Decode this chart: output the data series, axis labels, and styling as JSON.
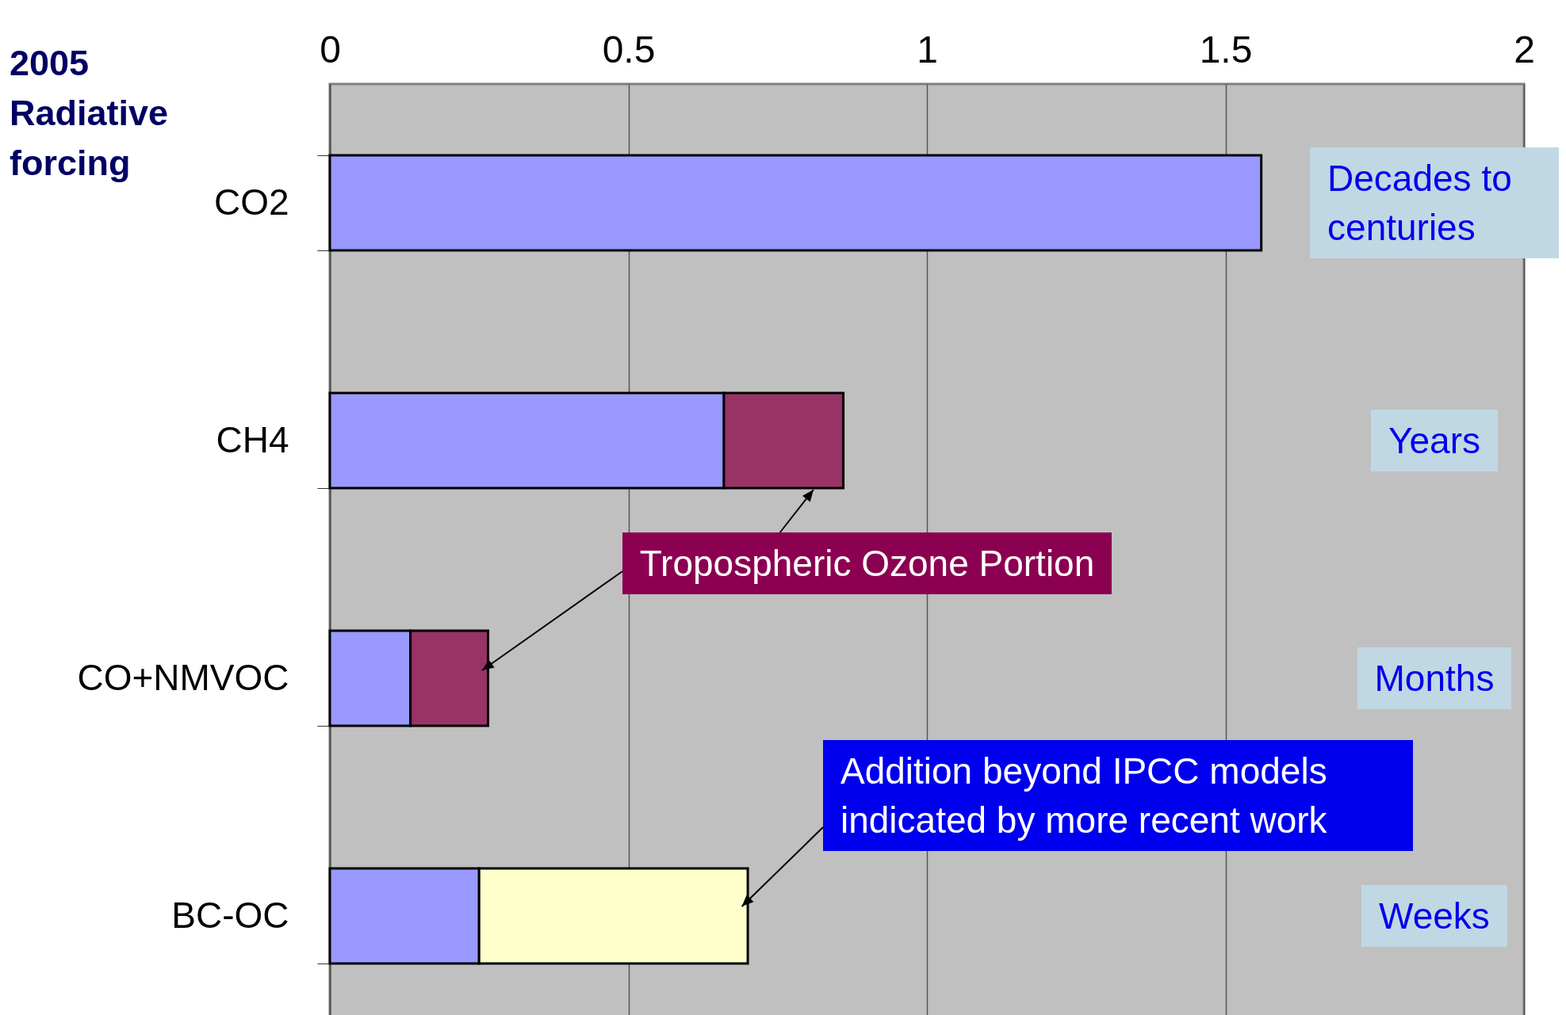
{
  "chart_data": {
    "type": "bar",
    "orientation": "horizontal",
    "stacked": true,
    "title": "2005 Radiative forcing",
    "categories": [
      "CO2",
      "CH4",
      "CO+NMVOC",
      "BC-OC"
    ],
    "series": [
      {
        "color": "#9999ff",
        "values": [
          1.56,
          0.66,
          0.135,
          0.25
        ]
      },
      {
        "color": "#993366",
        "values": [
          null,
          0.2,
          0.13,
          null
        ]
      },
      {
        "color": "#ffffcc",
        "values": [
          null,
          null,
          null,
          0.45
        ]
      }
    ],
    "xlim": [
      0,
      2
    ],
    "xticks": [
      0,
      0.5,
      1,
      1.5,
      2
    ],
    "grid": "x",
    "legend": false,
    "annotations": [
      "Decades to centuries",
      "Years",
      "Months",
      "Weeks",
      "Tropospheric Ozone Portion",
      "Addition beyond IPCC models indicated by more recent work"
    ]
  }
}
